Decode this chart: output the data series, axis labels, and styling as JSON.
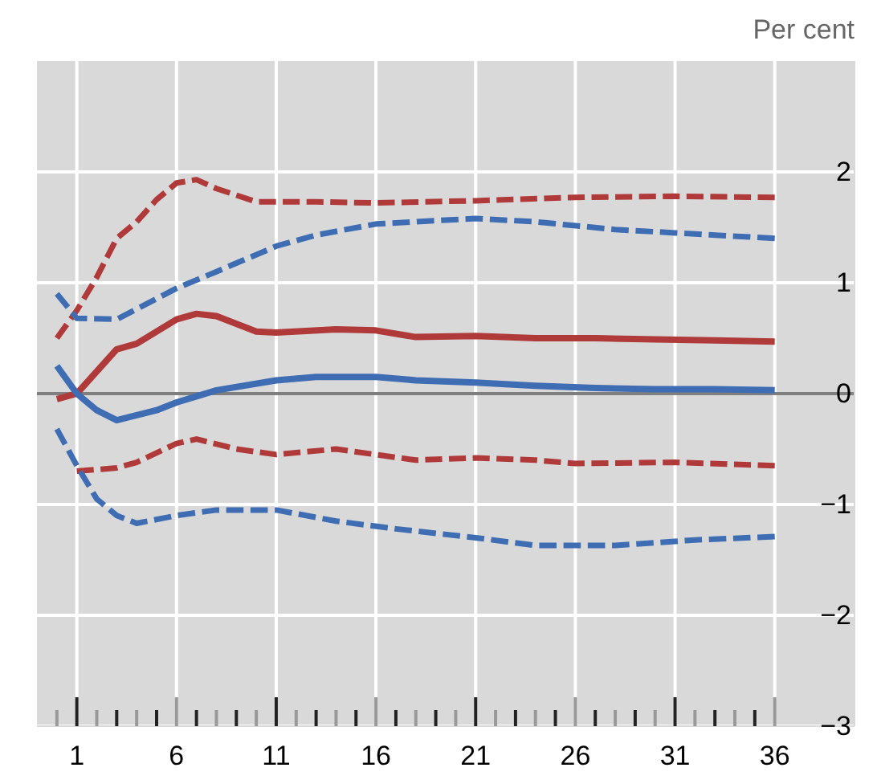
{
  "chart_data": {
    "type": "line",
    "ylabel": "Per cent",
    "xlim": [
      -1,
      40
    ],
    "ylim": [
      -3,
      3
    ],
    "xticks": [
      {
        "value": 0,
        "label": null
      },
      1,
      {
        "value": 2,
        "label": null
      },
      {
        "value": 3,
        "label": null
      },
      {
        "value": 4,
        "label": null
      },
      {
        "value": 5,
        "label": null
      },
      6,
      {
        "value": 7,
        "label": null
      },
      {
        "value": 8,
        "label": null
      },
      {
        "value": 9,
        "label": null
      },
      {
        "value": 10,
        "label": null
      },
      11,
      {
        "value": 12,
        "label": null
      },
      {
        "value": 13,
        "label": null
      },
      {
        "value": 14,
        "label": null
      },
      {
        "value": 15,
        "label": null
      },
      16,
      {
        "value": 17,
        "label": null
      },
      {
        "value": 18,
        "label": null
      },
      {
        "value": 19,
        "label": null
      },
      {
        "value": 20,
        "label": null
      },
      21,
      {
        "value": 22,
        "label": null
      },
      {
        "value": 23,
        "label": null
      },
      {
        "value": 24,
        "label": null
      },
      {
        "value": 25,
        "label": null
      },
      26,
      {
        "value": 27,
        "label": null
      },
      {
        "value": 28,
        "label": null
      },
      {
        "value": 29,
        "label": null
      },
      {
        "value": 30,
        "label": null
      },
      31,
      {
        "value": 32,
        "label": null
      },
      {
        "value": 33,
        "label": null
      },
      {
        "value": 34,
        "label": null
      },
      {
        "value": 35,
        "label": null
      },
      36
    ],
    "yticks": [
      {
        "value": -3,
        "label": "−3"
      },
      {
        "value": -2,
        "label": "−2"
      },
      {
        "value": -1,
        "label": "−1"
      },
      0,
      1,
      2
    ],
    "grid": true,
    "ref_lines": [
      {
        "axis": "y",
        "value": 0,
        "color": "#7f7f7f"
      }
    ],
    "series": [
      {
        "color": "#b03a3a",
        "line_style": "dashed",
        "x": [
          0,
          1,
          2,
          3,
          4,
          5,
          6,
          7,
          8,
          10,
          13,
          16,
          21,
          26,
          31,
          36
        ],
        "values": [
          0.5,
          0.75,
          1.05,
          1.4,
          1.55,
          1.75,
          1.9,
          1.93,
          1.85,
          1.73,
          1.73,
          1.72,
          1.74,
          1.77,
          1.78,
          1.77
        ]
      },
      {
        "color": "#3f6db3",
        "line_style": "dashed",
        "x": [
          0,
          1,
          3,
          6,
          8,
          11,
          13,
          16,
          21,
          24,
          28,
          31,
          36
        ],
        "values": [
          0.9,
          0.68,
          0.67,
          0.95,
          1.1,
          1.33,
          1.43,
          1.53,
          1.58,
          1.55,
          1.48,
          1.45,
          1.4
        ]
      },
      {
        "color": "#b03a3a",
        "line_style": "solid",
        "x": [
          0,
          1,
          3,
          4,
          6,
          7,
          8,
          10,
          11,
          14,
          16,
          18,
          21,
          24,
          27,
          30,
          33,
          36
        ],
        "values": [
          -0.05,
          0,
          0.4,
          0.45,
          0.67,
          0.72,
          0.7,
          0.56,
          0.55,
          0.58,
          0.57,
          0.51,
          0.52,
          0.5,
          0.5,
          0.49,
          0.48,
          0.47
        ]
      },
      {
        "color": "#3f6db3",
        "line_style": "solid",
        "x": [
          0,
          1,
          2,
          3,
          5,
          6,
          8,
          11,
          13,
          16,
          18,
          21,
          24,
          27,
          30,
          33,
          36
        ],
        "values": [
          0.25,
          0,
          -0.15,
          -0.24,
          -0.15,
          -0.08,
          0.03,
          0.12,
          0.15,
          0.15,
          0.12,
          0.1,
          0.07,
          0.05,
          0.04,
          0.04,
          0.03
        ]
      },
      {
        "color": "#b03a3a",
        "line_style": "dashed",
        "x": [
          1,
          3,
          4,
          6,
          7,
          9,
          11,
          14,
          16,
          18,
          21,
          24,
          26,
          31,
          36
        ],
        "values": [
          -0.7,
          -0.67,
          -0.62,
          -0.45,
          -0.41,
          -0.5,
          -0.55,
          -0.5,
          -0.55,
          -0.6,
          -0.58,
          -0.6,
          -0.63,
          -0.62,
          -0.65
        ]
      },
      {
        "color": "#3f6db3",
        "line_style": "dashed",
        "x": [
          0,
          1,
          2,
          3,
          4,
          6,
          8,
          11,
          14,
          17,
          21,
          24,
          28,
          32,
          36
        ],
        "values": [
          -0.32,
          -0.65,
          -0.95,
          -1.1,
          -1.17,
          -1.1,
          -1.05,
          -1.05,
          -1.15,
          -1.22,
          -1.3,
          -1.37,
          -1.37,
          -1.32,
          -1.29
        ]
      }
    ]
  }
}
